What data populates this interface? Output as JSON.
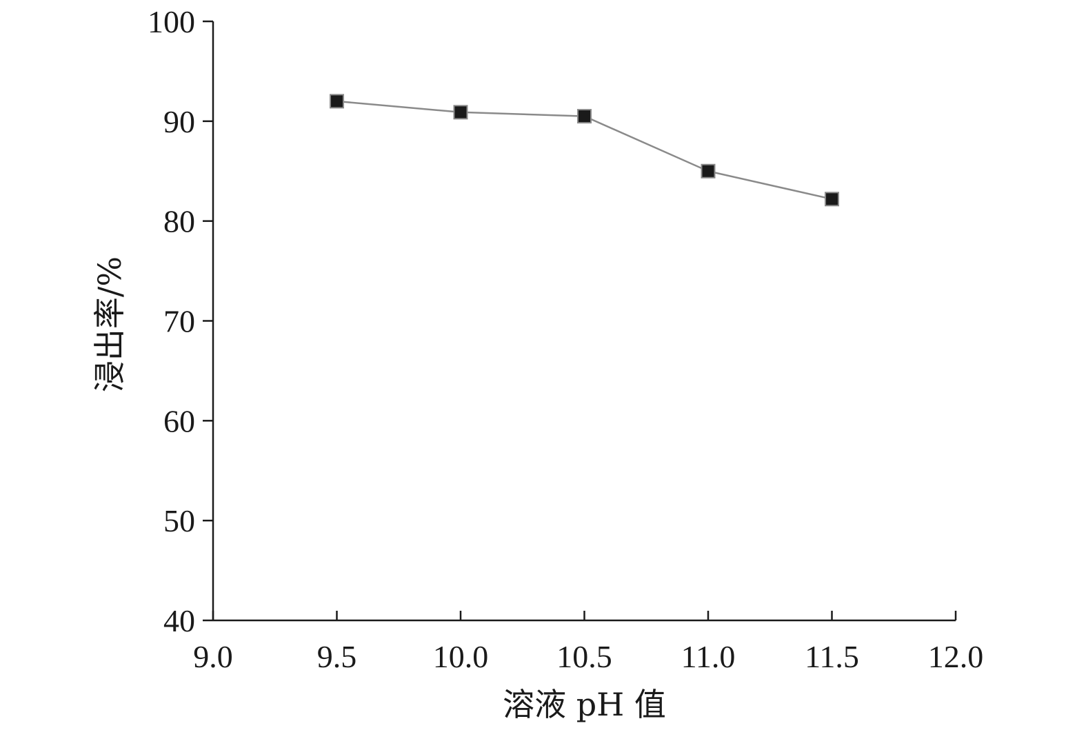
{
  "chart_data": {
    "type": "line",
    "xlabel": "溶液 pH 值",
    "ylabel": "浸出率/%",
    "xlim": [
      9.0,
      12.0
    ],
    "ylim": [
      40,
      100
    ],
    "x_ticks": [
      "9.0",
      "9.5",
      "10.0",
      "10.5",
      "11.0",
      "11.5",
      "12.0"
    ],
    "y_ticks": [
      "40",
      "50",
      "60",
      "70",
      "80",
      "90",
      "100"
    ],
    "grid": false,
    "series": [
      {
        "x": [
          9.5,
          10.0,
          10.5,
          11.0,
          11.5
        ],
        "values": [
          92.0,
          90.9,
          90.5,
          85.0,
          82.2
        ],
        "marker": "square",
        "line_color": "#8a8a8a",
        "marker_color": "#1a1a1a"
      }
    ]
  }
}
